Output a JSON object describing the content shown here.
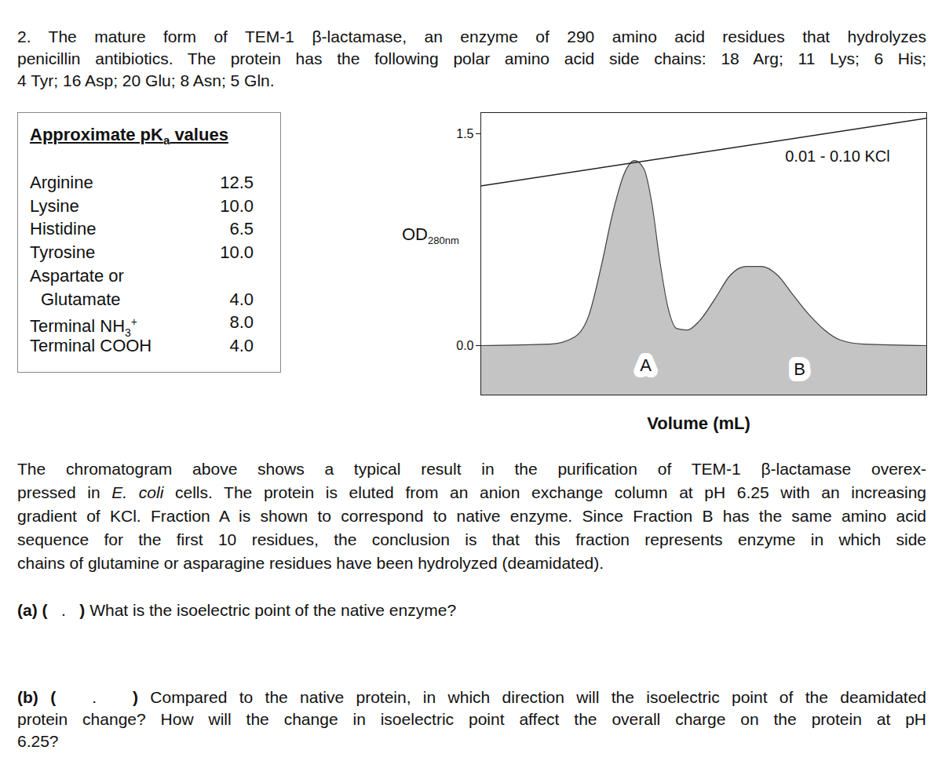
{
  "intro": {
    "lines": [
      [
        "2.  The mature form of TEM-1 β-lactamase, an enzyme of 290 amino acid residues that hydrolyzes"
      ],
      [
        "penicillin antibiotics.  The protein has the following polar amino acid side chains: 18 Arg; 11 Lys; 6 His;"
      ],
      [
        "4 Tyr; 16 Asp; 20 Glu; 8 Asn; 5 Gln."
      ]
    ]
  },
  "pka_table": {
    "title": {
      "text": "Approximate pK",
      "sub": "a",
      "after": " values"
    },
    "rows": [
      {
        "label": [
          "Arginine"
        ],
        "value": "12.5"
      },
      {
        "label": [
          "Lysine"
        ],
        "value": "10.0"
      },
      {
        "label": [
          "Histidine"
        ],
        "value": "6.5"
      },
      {
        "label": [
          "Tyrosine"
        ],
        "value": "10.0"
      },
      {
        "label": [
          "Aspartate or",
          "Glutamate"
        ],
        "value": "4.0"
      },
      {
        "label": [
          "Terminal NH"
        ],
        "sub": "3",
        "sup": "+",
        "value": "8.0"
      },
      {
        "label": [
          "Terminal COOH"
        ],
        "value": "4.0"
      }
    ]
  },
  "chart_data": {
    "type": "area",
    "x_label": "Volume (mL)",
    "y_label": "OD",
    "y_label_sub": "280nm",
    "xlim": [
      0,
      100
    ],
    "ylim": [
      -0.35,
      1.65
    ],
    "yticks": [
      {
        "value": 0,
        "label": "0.0"
      },
      {
        "value": 1.5,
        "label": "1.5"
      }
    ],
    "tick_labels": "y",
    "color": "#c4c4c4",
    "x": [
      0,
      15.5,
      21,
      24.3,
      27,
      29.6,
      32.2,
      34.5,
      36.6,
      38.4,
      40.1,
      41.9,
      44,
      46.3,
      48.9,
      52.5,
      56,
      59.5,
      63,
      66.5,
      70,
      73.6,
      77.1,
      80.6,
      85.9,
      100
    ],
    "values": [
      0,
      0.01,
      0.06,
      0.22,
      0.56,
      0.94,
      1.22,
      1.31,
      1.25,
      1.0,
      0.61,
      0.28,
      0.12,
      0.11,
      0.17,
      0.33,
      0.5,
      0.56,
      0.56,
      0.5,
      0.36,
      0.22,
      0.11,
      0.04,
      0.01,
      0
    ],
    "gradient": {
      "label": "0.01 - 0.10 KCl",
      "x": [
        0,
        100
      ],
      "values": [
        1.13,
        1.61
      ],
      "label_x": 80,
      "label_y": 1.34
    },
    "annotations": [
      {
        "text": "A",
        "x": 37,
        "y": -0.14
      },
      {
        "text": "B",
        "x": 71.5,
        "y": -0.17
      }
    ]
  },
  "paragraph": {
    "lines": [
      [
        "The chromatogram above shows a typical result in the purification of TEM-1 β-lactamase overex-"
      ],
      [
        "pressed in ",
        {
          "text": "E. coli",
          "italic": true
        },
        " cells. The protein is eluted from an anion exchange column at pH 6.25 with an increasing"
      ],
      [
        "gradient of KCl. Fraction A is shown to correspond to native enzyme.  Since Fraction B has the same amino acid"
      ],
      [
        "sequence for the first 10 residues, the conclusion is that this fraction represents enzyme in which side"
      ],
      [
        "chains of glutamine or asparagine residues have been hydrolyzed (deamidated)."
      ]
    ]
  },
  "questions": [
    {
      "lines": [
        [
          {
            "text": "(a) (",
            "bold": true
          },
          {
            "text": "   .   ",
            "pre": true
          },
          {
            "text": ")",
            "bold": true
          },
          " What is the isoelectric point of the native enzyme?"
        ]
      ]
    },
    {
      "lines": [
        [
          {
            "text": "(b) (",
            "bold": true
          },
          {
            "text": "   .   ",
            "pre": true
          },
          {
            "text": ")",
            "bold": true
          },
          " Compared to the native protein, in which direction will the isoelectric point of the deamidated"
        ],
        [
          "protein change? How will the change in isoelectric point affect the overall charge on the protein at pH"
        ],
        [
          "6.25?"
        ]
      ]
    }
  ]
}
